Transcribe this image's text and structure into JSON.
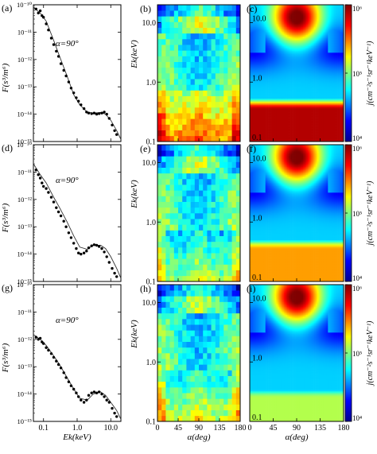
{
  "figure": {
    "rows": [
      {
        "panels": [
          {
            "letter": "(a)",
            "kind": "spectrum",
            "annotation": "α=90°"
          },
          {
            "letter": "(b)",
            "kind": "observed-heatmap"
          },
          {
            "letter": "(c)",
            "kind": "model-heatmap"
          }
        ]
      },
      {
        "panels": [
          {
            "letter": "(d)",
            "kind": "spectrum",
            "annotation": "α=90°"
          },
          {
            "letter": "(e)",
            "kind": "observed-heatmap"
          },
          {
            "letter": "(f)",
            "kind": "model-heatmap"
          }
        ]
      },
      {
        "panels": [
          {
            "letter": "(g)",
            "kind": "spectrum",
            "annotation": "α=90°"
          },
          {
            "letter": "(h)",
            "kind": "observed-heatmap"
          },
          {
            "letter": "(i)",
            "kind": "model-heatmap"
          }
        ]
      }
    ],
    "spectrum_axes": {
      "ylabel": "F(s³/m⁶)",
      "xlabel": "Ek(keV)",
      "x_scale": "log",
      "y_scale": "log",
      "x_range": [
        0.05,
        20
      ],
      "y_range": [
        1e-15,
        1e-10
      ],
      "x_ticks": [
        "0.1",
        "1.0",
        "10.0"
      ],
      "y_ticks": [
        "10⁻¹⁵",
        "10⁻¹⁴",
        "10⁻¹³",
        "10⁻¹²",
        "10⁻¹¹",
        "10⁻¹⁰"
      ]
    },
    "heatmap_axes": {
      "ylabel": "Ek(keV)",
      "xlabel": "α(deg)",
      "x_range": [
        0,
        180
      ],
      "y_scale": "log",
      "y_range": [
        0.1,
        20
      ],
      "x_ticks": [
        "0",
        "45",
        "90",
        "135",
        "180"
      ],
      "y_ticks": [
        "0.1",
        "1.0",
        "10.0"
      ]
    },
    "colorbar": {
      "label": "j(cm⁻²s⁻¹sr⁻¹keV⁻¹)",
      "scale": "log",
      "range": [
        10000.0,
        1000000.0
      ],
      "ticks": [
        "10⁴",
        "10⁵",
        "10⁶"
      ],
      "colormap": "jet",
      "colors": [
        "#00008f",
        "#0000ff",
        "#00ffff",
        "#ffff00",
        "#ff0000",
        "#800000"
      ]
    }
  },
  "chart_data": [
    {
      "type": "scatter",
      "panel": "(a)",
      "x_scale": "log",
      "y_scale": "log",
      "xlim": [
        0.05,
        20
      ],
      "ylim": [
        1e-15,
        1e-10
      ],
      "series": [
        {
          "kind": "points",
          "x": [
            0.06,
            0.07,
            0.08,
            0.09,
            0.1,
            0.12,
            0.14,
            0.17,
            0.2,
            0.24,
            0.28,
            0.33,
            0.4,
            0.47,
            0.56,
            0.66,
            0.79,
            0.94,
            1.1,
            1.3,
            1.6,
            1.9,
            2.2,
            2.7,
            3.2,
            3.8,
            4.5,
            5.4,
            6.4,
            7.6,
            9.0,
            11,
            13,
            15
          ],
          "y": [
            7e-11,
            5e-11,
            6e-11,
            4e-11,
            3.5e-11,
            2e-11,
            1.2e-11,
            6e-12,
            3.5e-12,
            2e-12,
            1.3e-12,
            7e-13,
            4e-13,
            2.5e-13,
            1.5e-13,
            9e-14,
            6e-14,
            4e-14,
            3e-14,
            2.2e-14,
            1.6e-14,
            1.2e-14,
            1.1e-14,
            1.05e-14,
            1.1e-14,
            1e-14,
            1.05e-14,
            1.1e-14,
            1.2e-14,
            1e-14,
            7e-15,
            4e-15,
            2.5e-15,
            1.8e-15
          ]
        },
        {
          "kind": "fit",
          "x": [
            0.05,
            0.08,
            0.12,
            0.2,
            0.3,
            0.5,
            0.8,
            1.2,
            2,
            3,
            5,
            7,
            10,
            15,
            20
          ],
          "y": [
            8e-11,
            5e-11,
            2.5e-11,
            5e-12,
            1.3e-12,
            2.5e-13,
            5e-14,
            2.2e-14,
            1.2e-14,
            1.1e-14,
            1.15e-14,
            1e-14,
            6e-15,
            2.5e-15,
            1.2e-15
          ]
        }
      ]
    },
    {
      "type": "scatter",
      "panel": "(d)",
      "x_scale": "log",
      "y_scale": "log",
      "xlim": [
        0.05,
        20
      ],
      "ylim": [
        1e-15,
        1e-10
      ],
      "series": [
        {
          "kind": "points",
          "x": [
            0.06,
            0.07,
            0.08,
            0.09,
            0.1,
            0.12,
            0.14,
            0.17,
            0.2,
            0.24,
            0.28,
            0.33,
            0.4,
            0.47,
            0.56,
            0.66,
            0.79,
            0.94,
            1.1,
            1.3,
            1.6,
            1.9,
            2.2,
            2.7,
            3.2,
            3.8,
            4.5,
            5.4,
            6.4,
            7.6,
            9.0,
            11,
            13,
            15
          ],
          "y": [
            1.2e-11,
            8e-12,
            6e-12,
            4e-12,
            3e-12,
            2.5e-12,
            1.8e-12,
            1.2e-12,
            8e-13,
            5e-13,
            3.5e-13,
            2.5e-13,
            1.6e-13,
            1e-13,
            6e-14,
            4e-14,
            2.5e-14,
            1.6e-14,
            1.1e-14,
            1e-14,
            1.1e-14,
            1.3e-14,
            1.7e-14,
            2e-14,
            2.2e-14,
            2.1e-14,
            1.9e-14,
            1.6e-14,
            1.2e-14,
            8e-15,
            5e-15,
            3e-15,
            2e-15,
            1.5e-15
          ]
        },
        {
          "kind": "fit",
          "x": [
            0.05,
            0.08,
            0.12,
            0.2,
            0.3,
            0.5,
            0.8,
            1.2,
            2,
            3,
            5,
            7,
            10,
            15,
            20
          ],
          "y": [
            2e-11,
            8e-12,
            4e-12,
            1.2e-12,
            5e-13,
            1.5e-13,
            4.5e-14,
            1.8e-14,
            1.5e-14,
            2.1e-14,
            2.1e-14,
            1.6e-14,
            8e-15,
            3e-15,
            1.3e-15
          ]
        }
      ]
    },
    {
      "type": "scatter",
      "panel": "(g)",
      "x_scale": "log",
      "y_scale": "log",
      "xlim": [
        0.05,
        20
      ],
      "ylim": [
        1e-15,
        1e-10
      ],
      "series": [
        {
          "kind": "points",
          "x": [
            0.06,
            0.07,
            0.08,
            0.09,
            0.1,
            0.12,
            0.14,
            0.17,
            0.2,
            0.24,
            0.28,
            0.33,
            0.4,
            0.47,
            0.56,
            0.66,
            0.79,
            0.94,
            1.1,
            1.3,
            1.6,
            1.9,
            2.2,
            2.7,
            3.2,
            3.8,
            4.5,
            5.4,
            6.4,
            7.6,
            9.0,
            11,
            13,
            15
          ],
          "y": [
            1.2e-12,
            1e-12,
            1.1e-12,
            8e-13,
            7e-13,
            5e-13,
            4e-13,
            3e-13,
            2.2e-13,
            1.6e-13,
            1.2e-13,
            9e-14,
            6e-14,
            4e-14,
            2.8e-14,
            2e-14,
            1.5e-14,
            1.1e-14,
            8e-15,
            6e-15,
            5e-15,
            6e-15,
            9e-15,
            1.1e-14,
            1.2e-14,
            1.1e-14,
            1.2e-14,
            1e-14,
            8e-15,
            6e-15,
            5e-15,
            3e-15,
            2e-15,
            1.5e-15
          ]
        },
        {
          "kind": "fit",
          "x": [
            0.05,
            0.08,
            0.12,
            0.2,
            0.3,
            0.5,
            0.8,
            1.2,
            2,
            3,
            5,
            7,
            10,
            15,
            20
          ],
          "y": [
            1.5e-12,
            1e-12,
            6e-13,
            2.5e-13,
            1.2e-13,
            4e-14,
            1.5e-14,
            7e-15,
            6e-15,
            1e-14,
            1.2e-14,
            9e-15,
            5e-15,
            2.5e-15,
            1.2e-15
          ]
        }
      ]
    },
    {
      "type": "heatmap",
      "panel": "(b)",
      "x_bins": 20,
      "y_bins": 24,
      "alpha_range_deg": [
        0,
        180
      ],
      "energy_range_keV": [
        0.1,
        20
      ],
      "low_energy_level": 0.82,
      "high_energy_level": 0.6,
      "stripe_strength": 0.18,
      "seed": 1
    },
    {
      "type": "heatmap",
      "panel": "(e)",
      "x_bins": 20,
      "y_bins": 24,
      "alpha_range_deg": [
        0,
        180
      ],
      "energy_range_keV": [
        0.1,
        20
      ],
      "low_energy_level": 0.62,
      "high_energy_level": 0.58,
      "stripe_strength": 0.2,
      "seed": 2
    },
    {
      "type": "heatmap",
      "panel": "(h)",
      "x_bins": 20,
      "y_bins": 24,
      "alpha_range_deg": [
        0,
        180
      ],
      "energy_range_keV": [
        0.1,
        20
      ],
      "low_energy_level": 0.66,
      "high_energy_level": 0.56,
      "stripe_strength": 0.2,
      "seed": 3
    },
    {
      "type": "heatmap",
      "panel": "(c)",
      "model": true,
      "low_energy_band_level": 0.95,
      "band_keV": 0.35,
      "peak_keV": 12,
      "peak_level": 0.72
    },
    {
      "type": "heatmap",
      "panel": "(f)",
      "model": true,
      "low_energy_band_level": 0.72,
      "band_keV": 0.35,
      "peak_keV": 12,
      "peak_level": 0.72
    },
    {
      "type": "heatmap",
      "panel": "(i)",
      "model": true,
      "low_energy_band_level": 0.55,
      "band_keV": 0.25,
      "peak_keV": 12,
      "peak_level": 0.72
    }
  ]
}
